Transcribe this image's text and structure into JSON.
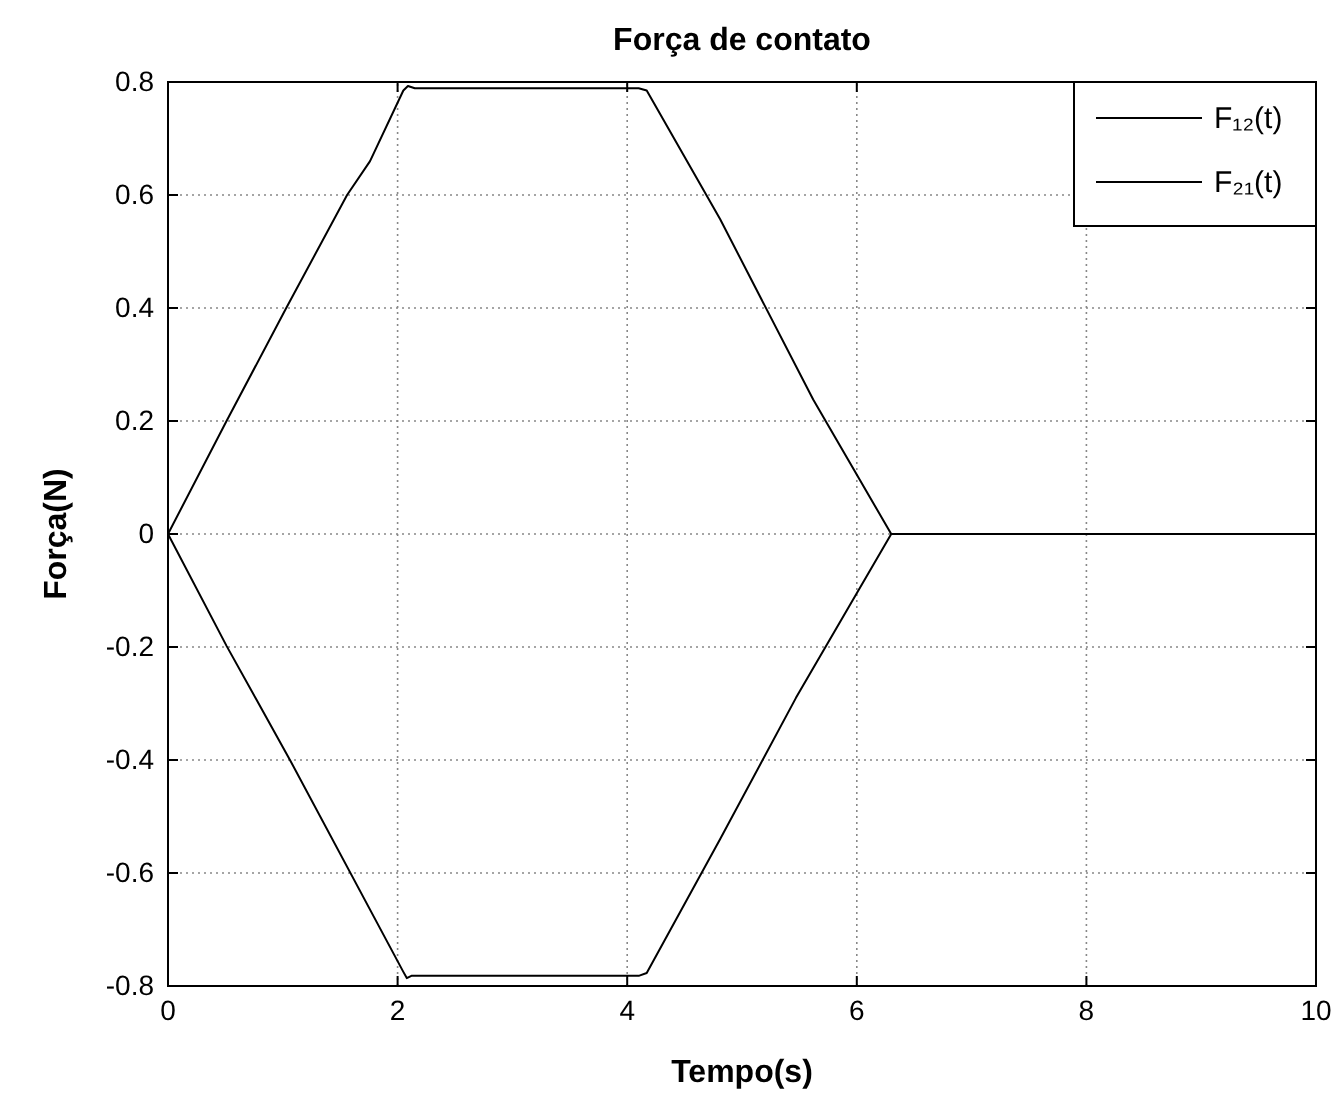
{
  "chart_data": {
    "type": "line",
    "title": "Força de contato",
    "xlabel": "Tempo(s)",
    "ylabel": "Força(N)",
    "series": [
      {
        "name": "F₁₂(t)",
        "color": "#000000",
        "x": [
          0,
          0.51,
          1.03,
          1.56,
          1.76,
          2.05,
          2.09,
          2.15,
          4.1,
          4.17,
          4.81,
          5.62,
          6.3,
          10
        ],
        "values": [
          0,
          0.2,
          0.4,
          0.6,
          0.66,
          0.785,
          0.793,
          0.789,
          0.789,
          0.785,
          0.557,
          0.238,
          0,
          0
        ]
      },
      {
        "name": "F₂₁(t)",
        "color": "#000000",
        "x": [
          0,
          0.51,
          0.77,
          1.06,
          2.05,
          2.08,
          2.12,
          4.1,
          4.17,
          4.81,
          5.47,
          6.3,
          10
        ],
        "values": [
          0,
          -0.198,
          -0.293,
          -0.399,
          -0.775,
          -0.786,
          -0.782,
          -0.782,
          -0.777,
          -0.54,
          -0.29,
          0,
          0
        ]
      }
    ],
    "xlim": [
      0,
      10
    ],
    "xticks": [
      0,
      2,
      4,
      6,
      8,
      10
    ],
    "ylim": [
      -0.8,
      0.8
    ],
    "yticks": [
      -0.8,
      -0.6,
      -0.4,
      -0.2,
      0,
      0.2,
      0.4,
      0.6,
      0.8
    ],
    "grid": true,
    "legend": "top right",
    "line_style": "solid"
  }
}
